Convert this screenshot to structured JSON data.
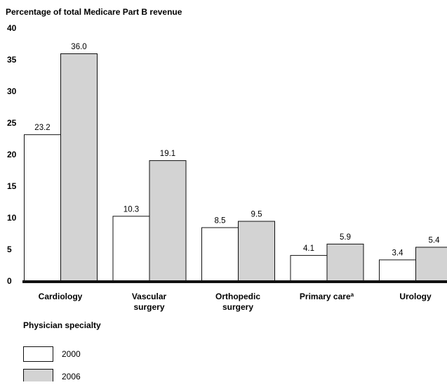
{
  "chart_data": {
    "type": "bar",
    "ylabel": "Percentage of total Medicare Part B revenue",
    "xlabel": "Physician specialty",
    "ylim": [
      0,
      40
    ],
    "yticks": [
      0,
      5,
      10,
      15,
      20,
      25,
      30,
      35,
      40
    ],
    "categories": [
      {
        "lines": [
          "Cardiology"
        ],
        "superscript": ""
      },
      {
        "lines": [
          "Vascular",
          "surgery"
        ],
        "superscript": ""
      },
      {
        "lines": [
          "Orthopedic",
          "surgery"
        ],
        "superscript": ""
      },
      {
        "lines": [
          "Primary care"
        ],
        "superscript": "a"
      },
      {
        "lines": [
          "Urology"
        ],
        "superscript": ""
      }
    ],
    "series": [
      {
        "name": "2000",
        "color": "#ffffff",
        "values": [
          23.2,
          10.3,
          8.5,
          4.1,
          3.4
        ],
        "labels": [
          "23.2",
          "10.3",
          "8.5",
          "4.1",
          "3.4"
        ]
      },
      {
        "name": "2006",
        "color": "#d3d3d3",
        "values": [
          36.0,
          19.1,
          9.5,
          5.9,
          5.4
        ],
        "labels": [
          "36.0",
          "19.1",
          "9.5",
          "5.9",
          "5.4"
        ]
      }
    ],
    "grid": false,
    "legend_position": "bottom-left"
  }
}
